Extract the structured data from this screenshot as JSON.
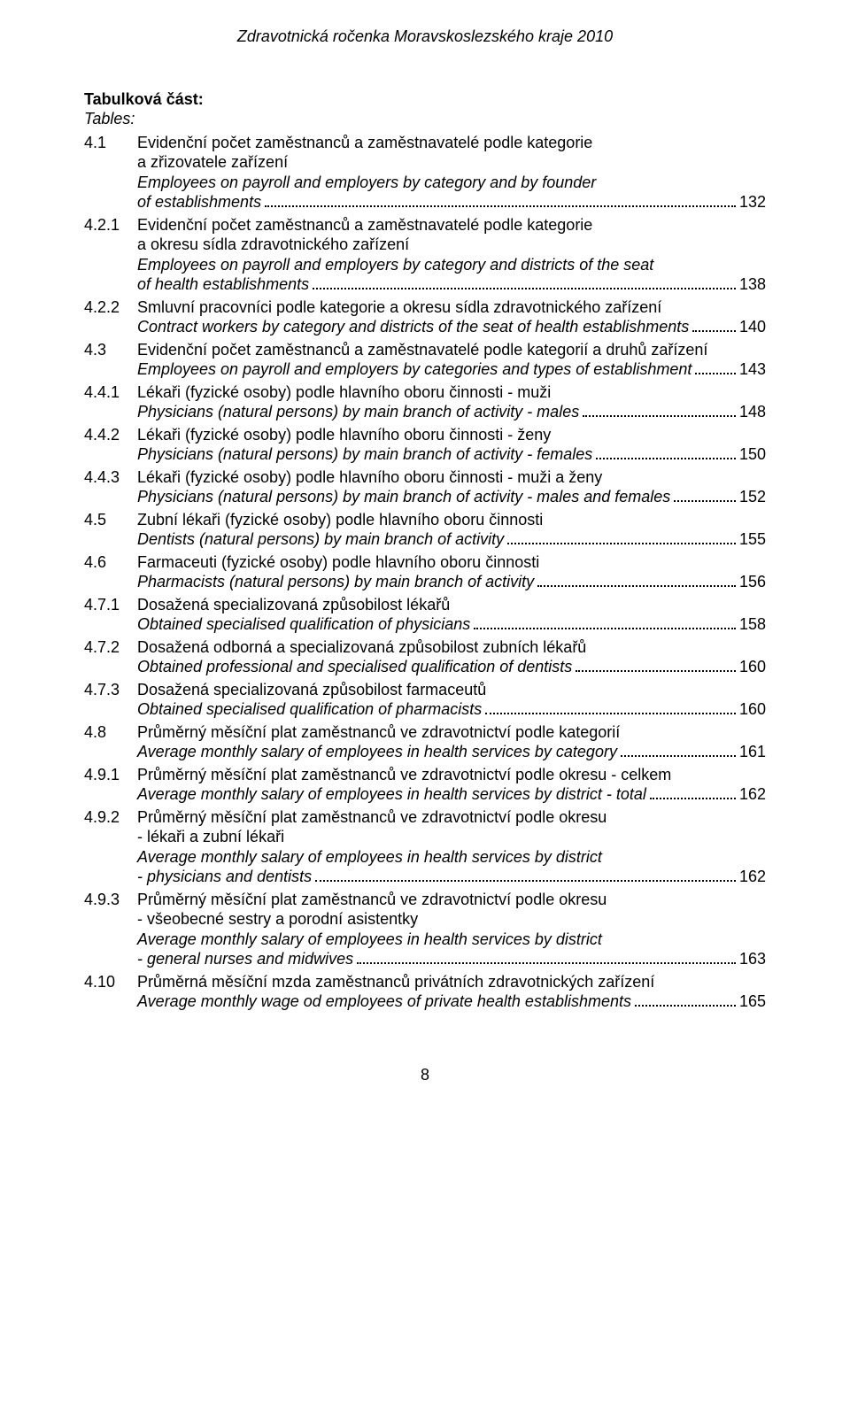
{
  "header": "Zdravotnická ročenka Moravskoslezského kraje 2010",
  "section_heading": "Tabulková část:",
  "section_subheading": "Tables:",
  "entries": [
    {
      "num": "4.1",
      "lines": [
        "Evidenční počet zaměstnanců a zaměstnavatelé podle kategorie",
        "a zřizovatele zařízení",
        "Employees on payroll and employers by category and by founder"
      ],
      "italic_from": 2,
      "last_italic": "of establishments",
      "page": "132"
    },
    {
      "num": "4.2.1",
      "lines": [
        "Evidenční počet zaměstnanců a zaměstnavatelé podle kategorie",
        "a okresu sídla zdravotnického zařízení",
        "Employees on payroll and employers by category and districts of the seat"
      ],
      "italic_from": 2,
      "last_italic": "of health establishments",
      "page": "138"
    },
    {
      "num": "4.2.2",
      "lines": [
        "Smluvní pracovníci podle kategorie a okresu sídla zdravotnického zařízení"
      ],
      "italic_from": 99,
      "last_italic": "Contract workers by category and districts of the seat of health establishments",
      "page": "140"
    },
    {
      "num": "4.3",
      "lines": [
        "Evidenční počet zaměstnanců a zaměstnavatelé podle kategorií a druhů zařízení"
      ],
      "italic_from": 99,
      "last_italic": "Employees on payroll and employers by categories and types of establishment",
      "page": "143"
    },
    {
      "num": "4.4.1",
      "lines": [
        "Lékaři (fyzické osoby) podle hlavního oboru činnosti - muži"
      ],
      "italic_from": 99,
      "last_italic": "Physicians (natural persons) by main branch of activity - males",
      "page": "148"
    },
    {
      "num": "4.4.2",
      "lines": [
        "Lékaři (fyzické osoby) podle hlavního oboru činnosti - ženy"
      ],
      "italic_from": 99,
      "last_italic": "Physicians (natural persons) by main branch of activity - females",
      "page": "150"
    },
    {
      "num": "4.4.3",
      "lines": [
        "Lékaři (fyzické osoby) podle hlavního oboru činnosti - muži a ženy"
      ],
      "italic_from": 99,
      "last_italic": "Physicians (natural persons) by main branch of activity - males and females",
      "page": "152"
    },
    {
      "num": "4.5",
      "lines": [
        "Zubní lékaři (fyzické osoby) podle hlavního oboru činnosti"
      ],
      "italic_from": 99,
      "last_italic": "Dentists (natural persons) by main branch of activity",
      "page": "155"
    },
    {
      "num": "4.6",
      "lines": [
        "Farmaceuti (fyzické osoby) podle hlavního oboru činnosti"
      ],
      "italic_from": 99,
      "last_italic": "Pharmacists (natural persons) by main branch of activity",
      "page": "156"
    },
    {
      "num": "4.7.1",
      "lines": [
        "Dosažená specializovaná způsobilost lékařů"
      ],
      "italic_from": 99,
      "last_italic": "Obtained specialised qualification of physicians",
      "page": "158"
    },
    {
      "num": "4.7.2",
      "lines": [
        "Dosažená odborná a specializovaná způsobilost zubních lékařů"
      ],
      "italic_from": 99,
      "last_italic": "Obtained professional and specialised qualification of dentists",
      "page": "160"
    },
    {
      "num": "4.7.3",
      "lines": [
        "Dosažená specializovaná způsobilost farmaceutů"
      ],
      "italic_from": 99,
      "last_italic": "Obtained specialised qualification of pharmacists",
      "page": "160"
    },
    {
      "num": "4.8",
      "lines": [
        "Průměrný měsíční plat zaměstnanců ve zdravotnictví podle kategorií"
      ],
      "italic_from": 99,
      "last_italic": "Average monthly salary of employees in health services by category",
      "page": "161"
    },
    {
      "num": "4.9.1",
      "lines": [
        "Průměrný měsíční plat zaměstnanců ve zdravotnictví podle okresu - celkem"
      ],
      "italic_from": 99,
      "last_italic": "Average monthly salary of employees in health services by district - total",
      "page": "162"
    },
    {
      "num": "4.9.2",
      "lines": [
        "Průměrný měsíční plat zaměstnanců ve zdravotnictví podle okresu",
        "- lékaři a zubní lékaři",
        "Average monthly salary of employees in health services by district"
      ],
      "italic_from": 2,
      "last_italic": "- physicians and dentists",
      "page": "162"
    },
    {
      "num": "4.9.3",
      "lines": [
        "Průměrný měsíční plat zaměstnanců ve zdravotnictví podle okresu",
        " - všeobecné sestry a porodní asistentky",
        " Average monthly salary of employees in health services by district"
      ],
      "italic_from": 2,
      "last_italic": " - general nurses and midwives",
      "page": "163"
    },
    {
      "num": "4.10",
      "lines": [
        "Průměrná měsíční mzda zaměstnanců privátních zdravotnických zařízení"
      ],
      "italic_from": 99,
      "last_italic": "Average monthly wage od employees of private health establishments",
      "page": "165"
    }
  ],
  "footer_page": "8"
}
